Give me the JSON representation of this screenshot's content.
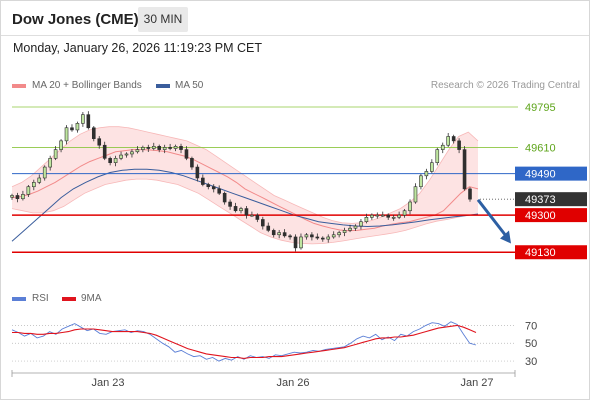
{
  "header": {
    "instrument": "Dow Jones (CME)",
    "timeframe": "30 MIN"
  },
  "datetime": "Monday, January 26, 2026 11:19:23 PM CET",
  "legend": {
    "ma20_label": "MA 20 + Bollinger Bands",
    "ma20_color": "#f28a8a",
    "ma50_label": "MA 50",
    "ma50_color": "#3a5d9c",
    "credit": "Research © 2026 Trading Central"
  },
  "rsi_legend": {
    "rsi_label": "RSI",
    "rsi_color": "#5b7fd6",
    "ma_label": "9MA",
    "ma_color": "#e0141e"
  },
  "chart_data": [
    {
      "type": "candlestick",
      "title": "Dow Jones (CME)",
      "ylim": [
        48980,
        49850
      ],
      "x_ticks": [
        "Jan 23",
        "Jan 26",
        "Jan 27"
      ],
      "levels": [
        {
          "value": 49795,
          "label": "49795",
          "kind": "resistance",
          "color": "#8cc63f"
        },
        {
          "value": 49610,
          "label": "49610",
          "kind": "resistance",
          "color": "#8cc63f"
        },
        {
          "value": 49490,
          "label": "49490",
          "kind": "pivot",
          "color": "#2f67c7"
        },
        {
          "value": 49300,
          "label": "49300",
          "kind": "support",
          "color": "#e00000"
        },
        {
          "value": 49130,
          "label": "49130",
          "kind": "support",
          "color": "#e00000"
        }
      ],
      "last_price": {
        "value": 49373,
        "label": "49373",
        "color": "#333333"
      },
      "forecast_arrow": {
        "from": 49370,
        "to": 49170,
        "color": "#2d5fa3"
      },
      "candles_close": [
        49390,
        49375,
        49395,
        49430,
        49450,
        49470,
        49520,
        49560,
        49600,
        49640,
        49700,
        49690,
        49720,
        49760,
        49700,
        49650,
        49620,
        49560,
        49540,
        49560,
        49575,
        49580,
        49590,
        49600,
        49610,
        49605,
        49615,
        49600,
        49610,
        49605,
        49615,
        49600,
        49560,
        49520,
        49470,
        49440,
        49430,
        49420,
        49400,
        49360,
        49340,
        49320,
        49330,
        49300,
        49300,
        49280,
        49250,
        49230,
        49210,
        49220,
        49205,
        49200,
        49150,
        49200,
        49210,
        49200,
        49195,
        49190,
        49200,
        49210,
        49220,
        49230,
        49240,
        49250,
        49270,
        49290,
        49300,
        49300,
        49300,
        49290,
        49290,
        49300,
        49320,
        49360,
        49430,
        49480,
        49500,
        49540,
        49600,
        49620,
        49660,
        49640,
        49600,
        49420,
        49373
      ],
      "bollinger_mid": [
        49380,
        49385,
        49395,
        49410,
        49430,
        49450,
        49475,
        49500,
        49525,
        49545,
        49560,
        49575,
        49590,
        49595,
        49600,
        49600,
        49598,
        49595,
        49590,
        49580,
        49570,
        49555,
        49535,
        49515,
        49495,
        49475,
        49450,
        49420,
        49400,
        49380,
        49360,
        49340,
        49320,
        49300,
        49280,
        49262,
        49250,
        49240,
        49232,
        49228,
        49230,
        49235,
        49240,
        49250,
        49258,
        49265,
        49270,
        49280,
        49290,
        49300,
        49320,
        49360,
        49400,
        49430,
        49420
      ],
      "bollinger_upper": [
        49430,
        49450,
        49480,
        49520,
        49560,
        49600,
        49640,
        49670,
        49690,
        49700,
        49705,
        49705,
        49700,
        49690,
        49680,
        49670,
        49660,
        49650,
        49640,
        49620,
        49600,
        49570,
        49540,
        49510,
        49480,
        49450,
        49420,
        49390,
        49370,
        49350,
        49330,
        49310,
        49290,
        49275,
        49265,
        49262,
        49265,
        49275,
        49290,
        49310,
        49330,
        49360,
        49400,
        49460,
        49530,
        49600,
        49660,
        49680,
        49640
      ],
      "bollinger_lower": [
        49330,
        49320,
        49310,
        49310,
        49320,
        49340,
        49370,
        49400,
        49420,
        49440,
        49450,
        49460,
        49465,
        49465,
        49460,
        49450,
        49440,
        49420,
        49400,
        49370,
        49340,
        49310,
        49280,
        49250,
        49220,
        49200,
        49185,
        49175,
        49170,
        49168,
        49170,
        49175,
        49182,
        49190,
        49198,
        49205,
        49212,
        49220,
        49230,
        49245,
        49260,
        49272,
        49280,
        49290,
        49300,
        49300
      ],
      "ma50": [
        49180,
        49230,
        49280,
        49330,
        49380,
        49420,
        49450,
        49475,
        49495,
        49505,
        49510,
        49510,
        49505,
        49495,
        49480,
        49460,
        49440,
        49420,
        49400,
        49380,
        49360,
        49340,
        49320,
        49300,
        49285,
        49270,
        49262,
        49255,
        49250,
        49248,
        49250,
        49255,
        49262,
        49270,
        49278,
        49285,
        49292,
        49298,
        49305
      ],
      "last_close": 49373
    },
    {
      "type": "line",
      "title": "RSI",
      "ylim": [
        20,
        85
      ],
      "y_ticks": [
        70,
        50,
        30
      ],
      "series": [
        {
          "name": "RSI",
          "values": [
            65,
            62,
            58,
            61,
            56,
            58,
            63,
            60,
            66,
            69,
            72,
            68,
            64,
            66,
            61,
            60,
            63,
            64,
            65,
            62,
            64,
            63,
            60,
            55,
            50,
            46,
            40,
            42,
            38,
            35,
            36,
            32,
            34,
            30,
            33,
            31,
            35,
            32,
            36,
            34,
            35,
            33,
            37,
            36,
            38,
            40,
            39,
            40,
            42,
            41,
            43,
            44,
            45,
            46,
            50,
            55,
            58,
            56,
            60,
            54,
            57,
            53,
            60,
            58,
            63,
            66,
            70,
            73,
            72,
            69,
            74,
            71,
            60,
            50,
            48
          ]
        },
        {
          "name": "9MA",
          "values": [
            62,
            62,
            61,
            61,
            60,
            60,
            61,
            61,
            62,
            63,
            65,
            66,
            66,
            66,
            65,
            64,
            63,
            63,
            63,
            63,
            63,
            62,
            61,
            59,
            56,
            53,
            50,
            47,
            44,
            42,
            40,
            38,
            37,
            36,
            35,
            34,
            34,
            33,
            34,
            34,
            34,
            35,
            35,
            35,
            36,
            37,
            38,
            39,
            40,
            41,
            42,
            43,
            44,
            45,
            47,
            49,
            51,
            53,
            55,
            56,
            56,
            57,
            57,
            58,
            59,
            61,
            63,
            65,
            67,
            68,
            69,
            70,
            68,
            65,
            62
          ]
        }
      ]
    }
  ]
}
